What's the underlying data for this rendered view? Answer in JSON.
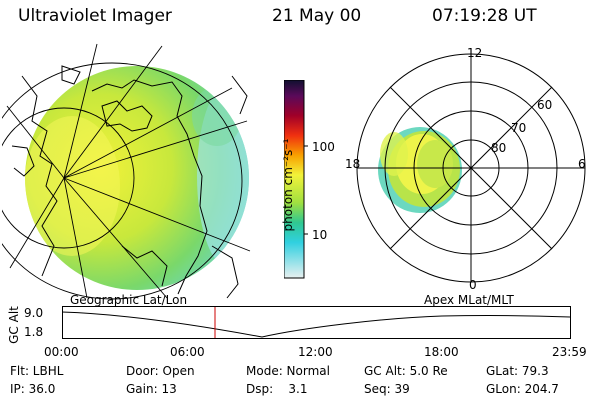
{
  "header": {
    "instrument": "Ultraviolet Imager",
    "date": "21 May 00",
    "time": "07:19:28 UT"
  },
  "colorbar": {
    "unit_label": "photon cm⁻²s⁻¹",
    "tick_high": "100",
    "tick_low": "10",
    "scale": "log"
  },
  "polar_plot": {
    "mlt_top": "12",
    "mlt_left": "18",
    "mlt_right": "6",
    "mlt_bottom": "0",
    "lat_60": "60",
    "lat_70": "70",
    "lat_80": "80"
  },
  "panel_labels": {
    "left": "Geographic Lat/Lon",
    "right": "Apex MLat/MLT"
  },
  "altitude_strip": {
    "ylabel": "GC Alt",
    "y_top": "9.0",
    "y_bottom": "1.8",
    "times": [
      "00:00",
      "06:00",
      "12:00",
      "18:00",
      "23:59"
    ],
    "marker_color": "#cc0000"
  },
  "footer": {
    "row1": [
      "Flt: LBHL",
      "Door: Open",
      "Mode: Normal",
      "GC Alt: 5.0 Re",
      "GLat: 79.3"
    ],
    "row2": [
      "IP: 36.0",
      "Gain: 13",
      "Dsp:    3.1",
      "Seq: 39",
      "GLon: 204.7"
    ]
  }
}
